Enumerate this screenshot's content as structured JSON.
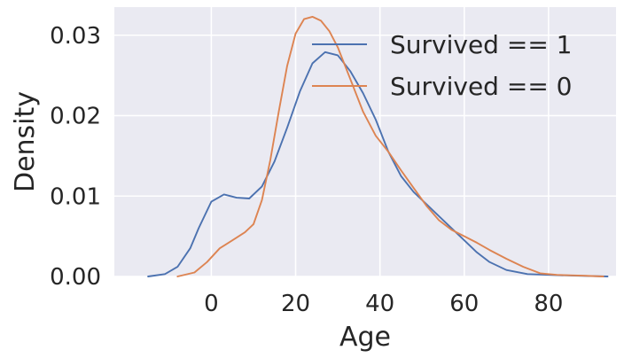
{
  "chart_data": {
    "type": "line",
    "xlabel": "Age",
    "ylabel": "Density",
    "xlim": [
      -23,
      96
    ],
    "ylim": [
      0,
      0.0335
    ],
    "grid": true,
    "legend_placement": "top-right",
    "xticks": [
      "0",
      "20",
      "40",
      "60",
      "80"
    ],
    "xtick_values": [
      0,
      20,
      40,
      60,
      80
    ],
    "yticks": [
      "0.00",
      "0.01",
      "0.02",
      "0.03"
    ],
    "ytick_values": [
      0,
      0.01,
      0.02,
      0.03
    ],
    "series": [
      {
        "name": "Survived == 1",
        "color": "#4c72b0",
        "points": [
          [
            -15,
            0
          ],
          [
            -11,
            0.0003
          ],
          [
            -8,
            0.0012
          ],
          [
            -5,
            0.0035
          ],
          [
            -3,
            0.006
          ],
          [
            0,
            0.0093
          ],
          [
            3,
            0.0102
          ],
          [
            6,
            0.0098
          ],
          [
            9,
            0.0097
          ],
          [
            12,
            0.0112
          ],
          [
            15,
            0.0143
          ],
          [
            18,
            0.0185
          ],
          [
            21,
            0.023
          ],
          [
            24,
            0.0265
          ],
          [
            27,
            0.0279
          ],
          [
            30,
            0.0275
          ],
          [
            33,
            0.0255
          ],
          [
            36,
            0.0228
          ],
          [
            39,
            0.0195
          ],
          [
            42,
            0.0155
          ],
          [
            45,
            0.0125
          ],
          [
            48,
            0.0105
          ],
          [
            51,
            0.009
          ],
          [
            54,
            0.0075
          ],
          [
            57,
            0.006
          ],
          [
            60,
            0.0045
          ],
          [
            63,
            0.003
          ],
          [
            66,
            0.0018
          ],
          [
            70,
            0.0008
          ],
          [
            75,
            0.0003
          ],
          [
            80,
            0.0002
          ],
          [
            86,
            0.0001
          ],
          [
            94,
            0
          ]
        ]
      },
      {
        "name": "Survived == 0",
        "color": "#dd8452",
        "points": [
          [
            -8,
            0
          ],
          [
            -4,
            0.0005
          ],
          [
            -1,
            0.0018
          ],
          [
            2,
            0.0035
          ],
          [
            5,
            0.0045
          ],
          [
            8,
            0.0055
          ],
          [
            10,
            0.0065
          ],
          [
            12,
            0.0095
          ],
          [
            14,
            0.0145
          ],
          [
            16,
            0.0205
          ],
          [
            18,
            0.0262
          ],
          [
            20,
            0.0302
          ],
          [
            22,
            0.032
          ],
          [
            24,
            0.0323
          ],
          [
            26,
            0.0318
          ],
          [
            28,
            0.0305
          ],
          [
            30,
            0.0285
          ],
          [
            33,
            0.0245
          ],
          [
            36,
            0.0205
          ],
          [
            39,
            0.0175
          ],
          [
            42,
            0.0155
          ],
          [
            45,
            0.0132
          ],
          [
            48,
            0.011
          ],
          [
            51,
            0.0088
          ],
          [
            54,
            0.007
          ],
          [
            57,
            0.0058
          ],
          [
            60,
            0.005
          ],
          [
            63,
            0.0042
          ],
          [
            66,
            0.0033
          ],
          [
            70,
            0.0022
          ],
          [
            74,
            0.0012
          ],
          [
            78,
            0.0004
          ],
          [
            82,
            0.0002
          ],
          [
            88,
            0.0001
          ],
          [
            93,
            0
          ]
        ]
      }
    ]
  }
}
